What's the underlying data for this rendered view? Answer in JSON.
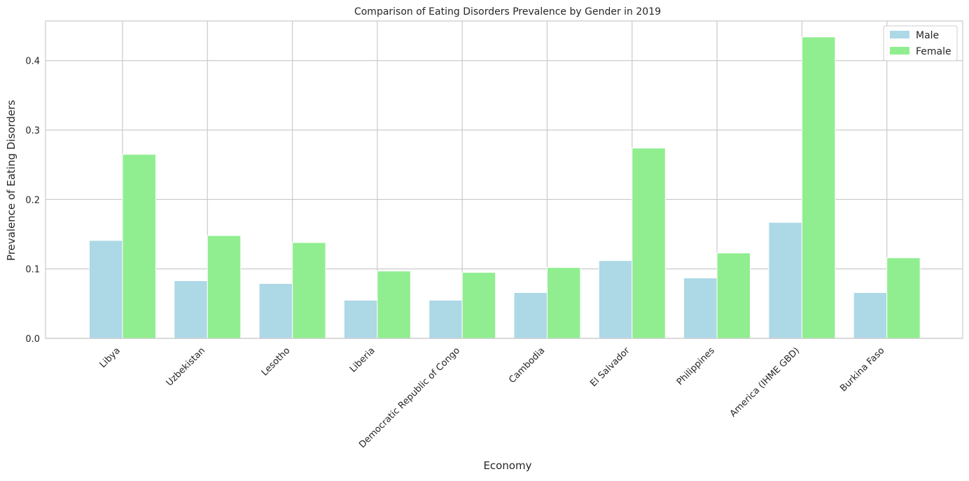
{
  "chart_data": {
    "type": "bar",
    "title": "Comparison of Eating Disorders Prevalence by Gender in 2019",
    "xlabel": "Economy",
    "ylabel": "Prevalence of Eating Disorders",
    "ylim": [
      0,
      0.457
    ],
    "yticks": [
      0.0,
      0.1,
      0.2,
      0.3,
      0.4
    ],
    "ytick_labels": [
      "0.0",
      "0.1",
      "0.2",
      "0.3",
      "0.4"
    ],
    "grid": true,
    "legend_position": "top-right",
    "categories": [
      "Libya",
      "Uzbekistan",
      "Lesotho",
      "Liberia",
      "Democratic Republic of Congo",
      "Cambodia",
      "El Salvador",
      "Philippines",
      "America (IHME GBD)",
      "Burkina Faso"
    ],
    "series": [
      {
        "name": "Male",
        "color": "#add8e6",
        "values": [
          0.141,
          0.083,
          0.079,
          0.055,
          0.055,
          0.066,
          0.112,
          0.087,
          0.167,
          0.066
        ]
      },
      {
        "name": "Female",
        "color": "#90ee90",
        "values": [
          0.265,
          0.148,
          0.138,
          0.097,
          0.095,
          0.102,
          0.274,
          0.123,
          0.434,
          0.116
        ]
      }
    ]
  }
}
